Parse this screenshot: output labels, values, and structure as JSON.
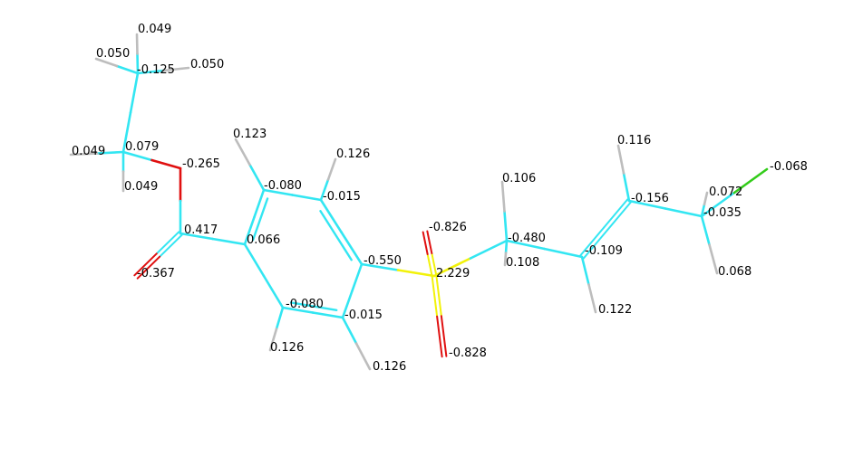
{
  "colors": {
    "carbon": "#33e6f2",
    "hydrogen": "#bdbdbd",
    "oxygen": "#e01010",
    "sulfur": "#f2f20a",
    "fluorine": "#33cc1a",
    "background": "#ffffff",
    "label": "#000000"
  },
  "charges": [
    "0.049",
    "0.050",
    "-0.125",
    "0.050",
    "0.049",
    "0.079",
    "0.049",
    "-0.265",
    "0.417",
    "-0.367",
    "0.123",
    "-0.080",
    "-0.015",
    "0.126",
    "0.066",
    "-0.080",
    "-0.015",
    "0.126",
    "0.126",
    "-0.550",
    "-0.826",
    "2.229",
    "-0.828",
    "0.106",
    "-0.480",
    "0.108",
    "-0.109",
    "0.122",
    "0.116",
    "-0.156",
    "0.072",
    "-0.035",
    "-0.068",
    "0.068"
  ]
}
